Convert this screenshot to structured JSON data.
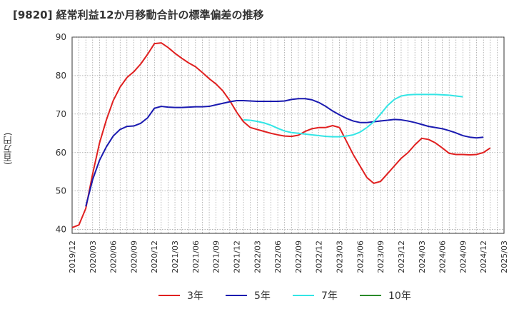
{
  "chart_data": {
    "type": "line",
    "title": "[9820]  経常利益12か月移動合計の標準偏差の推移",
    "ylabel": "(百万円)",
    "xlabel": "",
    "ylim": [
      39,
      90
    ],
    "yticks": [
      40,
      50,
      60,
      70,
      80,
      90
    ],
    "x_start": "2019/12",
    "x_end": "2025/03",
    "xticks": [
      "2019/12",
      "2020/03",
      "2020/06",
      "2020/09",
      "2020/12",
      "2021/03",
      "2021/06",
      "2021/09",
      "2021/12",
      "2022/03",
      "2022/06",
      "2022/09",
      "2022/12",
      "2023/03",
      "2023/06",
      "2023/09",
      "2023/12",
      "2024/03",
      "2024/06",
      "2024/09",
      "2024/12",
      "2025/03"
    ],
    "grid": true,
    "legend_position": "bottom",
    "series": [
      {
        "name": "3年",
        "color": "#e02020",
        "start": "2019/12",
        "values": [
          40.5,
          41.2,
          45.5,
          54.5,
          62.5,
          68.5,
          73.5,
          77,
          79.5,
          81,
          83,
          85.5,
          88.3,
          88.5,
          87.3,
          85.8,
          84.5,
          83.3,
          82.3,
          80.8,
          79.2,
          77.8,
          76,
          73.5,
          70.5,
          68,
          66.5,
          66,
          65.5,
          65,
          64.6,
          64.3,
          64.2,
          64.5,
          65.5,
          66.2,
          66.5,
          66.5,
          67,
          66.5,
          63,
          59.5,
          56.5,
          53.5,
          52,
          52.5,
          54.5,
          56.5,
          58.5,
          60,
          62,
          63.7,
          63.4,
          62.5,
          61.2,
          59.8,
          59.5,
          59.5,
          59.4,
          59.5,
          60,
          61.2
        ]
      },
      {
        "name": "5年",
        "color": "#1a1ab0",
        "start": "2019/12",
        "values": [
          null,
          null,
          46,
          53,
          58,
          61.5,
          64.3,
          66,
          66.8,
          66.9,
          67.6,
          69,
          71.5,
          72,
          71.8,
          71.7,
          71.7,
          71.8,
          71.9,
          71.9,
          72,
          72.4,
          72.8,
          73.2,
          73.5,
          73.5,
          73.4,
          73.3,
          73.3,
          73.3,
          73.3,
          73.4,
          73.8,
          74,
          74,
          73.7,
          73,
          72,
          70.8,
          69.8,
          68.9,
          68.2,
          67.8,
          67.8,
          68,
          68.2,
          68.4,
          68.6,
          68.5,
          68.2,
          67.8,
          67.3,
          66.8,
          66.5,
          66.2,
          65.7,
          65.1,
          64.4,
          64,
          63.8,
          64
        ]
      },
      {
        "name": "7年",
        "color": "#33e5e5",
        "start": "2022/01",
        "values": [
          68.5,
          68.4,
          68.1,
          67.7,
          67.1,
          66.3,
          65.6,
          65.2,
          65,
          64.8,
          64.6,
          64.4,
          64.2,
          64.1,
          64.1,
          64.3,
          64.6,
          65.3,
          66.5,
          68,
          70,
          72.2,
          73.8,
          74.7,
          75,
          75.1,
          75.1,
          75.1,
          75.1,
          75,
          74.9,
          74.7,
          74.5
        ]
      },
      {
        "name": "10年",
        "color": "#2a8a2a",
        "start": "2019/12",
        "values": []
      }
    ]
  }
}
